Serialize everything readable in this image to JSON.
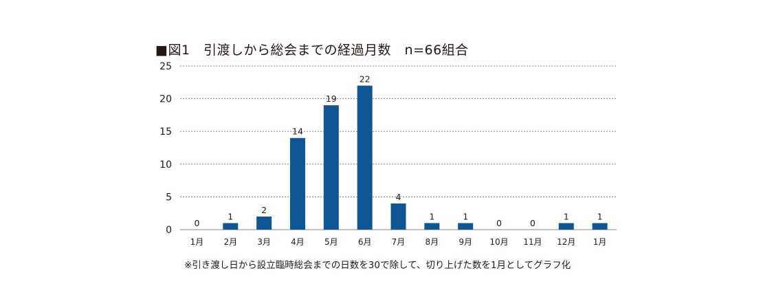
{
  "chart_data": {
    "type": "bar",
    "title": "■図1　引渡しから総会までの経過月数　n=66組合",
    "categories": [
      "1月",
      "2月",
      "3月",
      "4月",
      "5月",
      "6月",
      "7月",
      "8月",
      "9月",
      "10月",
      "11月",
      "12月",
      "1月"
    ],
    "values": [
      0,
      1,
      2,
      14,
      19,
      22,
      4,
      1,
      1,
      0,
      0,
      1,
      1
    ],
    "xlabel": "",
    "ylabel": "",
    "ylim": [
      0,
      25
    ],
    "yticks": [
      0,
      5,
      10,
      15,
      20,
      25
    ],
    "grid": true,
    "bar_color": "#0f5694",
    "note": "※引き渡し日から設立臨時総会までの日数を30で除して、切り上げた数を1月としてグラフ化"
  }
}
